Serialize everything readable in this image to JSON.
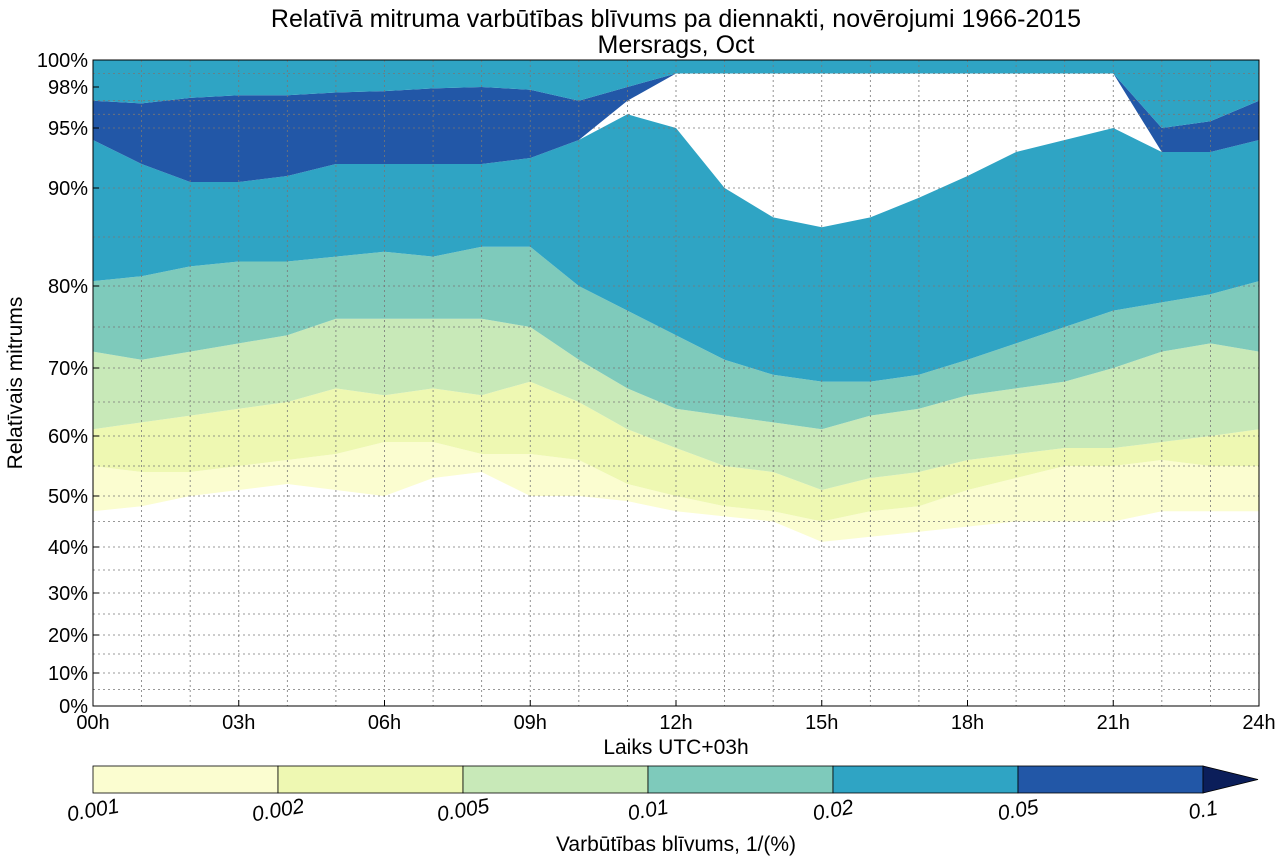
{
  "chart_data": {
    "type": "heatmap",
    "subtype": "filled-contour",
    "title": "Relatīvā mitruma varbūtības blīvums pa diennakti, novērojumi 1966-2015",
    "subtitle": "Mersrags, Oct",
    "xlabel": "Laiks UTC+03h",
    "ylabel": "Relatīvais mitrums",
    "x_ticks": [
      "00h",
      "03h",
      "06h",
      "09h",
      "12h",
      "15h",
      "18h",
      "21h",
      "24h"
    ],
    "x_tick_hours": [
      0,
      3,
      6,
      9,
      12,
      15,
      18,
      21,
      24
    ],
    "xlim": [
      0,
      24
    ],
    "y_ticks": [
      "0%",
      "10%",
      "20%",
      "30%",
      "40%",
      "50%",
      "60%",
      "70%",
      "80%",
      "90%",
      "95%",
      "98%",
      "100%"
    ],
    "y_tick_values": [
      0,
      10,
      20,
      30,
      40,
      50,
      60,
      70,
      80,
      90,
      95,
      98,
      100
    ],
    "ylim": [
      0,
      100
    ],
    "y_scale": "nonlinear (stretched toward 100%)",
    "grid": true,
    "colorbar": {
      "label": "Varbūtības blīvums, 1/(%)",
      "levels": [
        "0.001",
        "0.002",
        "0.005",
        "0.01",
        "0.02",
        "0.05",
        "0.1"
      ],
      "colors": [
        "#fbfdd0",
        "#eef8b2",
        "#c8e9b8",
        "#7ecabb",
        "#2fa4c4",
        "#2257a7"
      ],
      "extend_color": "#0b1e5a",
      "placement": "bottom"
    },
    "levels_bands": [
      {
        "range": "0.001-0.002",
        "lower": [
          47,
          48,
          50,
          51,
          52,
          51,
          50,
          53,
          54,
          50,
          50,
          49,
          47,
          46,
          45,
          41,
          42,
          43,
          44,
          45,
          45,
          45,
          47,
          47,
          47
        ],
        "upper": [
          55,
          54,
          54,
          55,
          56,
          57,
          59,
          59,
          57,
          57,
          56,
          52,
          50,
          48,
          47,
          45,
          47,
          48,
          51,
          53,
          55,
          55,
          56,
          55,
          55
        ]
      },
      {
        "range": "0.002-0.005",
        "lower": [
          55,
          54,
          54,
          55,
          56,
          57,
          59,
          59,
          57,
          57,
          56,
          52,
          50,
          48,
          47,
          45,
          47,
          48,
          51,
          53,
          55,
          55,
          56,
          55,
          55
        ],
        "upper": [
          61,
          62,
          63,
          64,
          65,
          67,
          66,
          67,
          66,
          68,
          65,
          61,
          58,
          55,
          54,
          51,
          53,
          54,
          56,
          57,
          58,
          58,
          59,
          60,
          61
        ]
      },
      {
        "range": "0.005-0.01",
        "lower": [
          61,
          62,
          63,
          64,
          65,
          67,
          66,
          67,
          66,
          68,
          65,
          61,
          58,
          55,
          54,
          51,
          53,
          54,
          56,
          57,
          58,
          58,
          59,
          60,
          61
        ],
        "upper": [
          72,
          71,
          72,
          73,
          74,
          76,
          76,
          76,
          76,
          75,
          71,
          67,
          64,
          63,
          62,
          61,
          63,
          64,
          66,
          67,
          68,
          70,
          72,
          73,
          72
        ]
      },
      {
        "range": "0.01-0.02",
        "lower": [
          72,
          71,
          72,
          73,
          74,
          76,
          76,
          76,
          76,
          75,
          71,
          67,
          64,
          63,
          62,
          61,
          63,
          64,
          66,
          67,
          68,
          70,
          72,
          73,
          72
        ],
        "upper": [
          80.5,
          81,
          82,
          82.5,
          82.5,
          83,
          83.5,
          83,
          84,
          84,
          80,
          77,
          74,
          71,
          69,
          68,
          68,
          69,
          71,
          73,
          75,
          77,
          78,
          79,
          80.5
        ]
      },
      {
        "range": "0.02-0.05",
        "lower": [
          80.5,
          81,
          82,
          82.5,
          82.5,
          83,
          83.5,
          83,
          84,
          84,
          80,
          77,
          74,
          71,
          69,
          68,
          68,
          69,
          71,
          73,
          75,
          77,
          78,
          79,
          80.5
        ],
        "upper": [
          94,
          92,
          90.5,
          90.5,
          91,
          92,
          92,
          92,
          92,
          92.5,
          94,
          96,
          95,
          90,
          87,
          86,
          87,
          89,
          91,
          93,
          94,
          95,
          93,
          93,
          94
        ]
      },
      {
        "range": "0.05-0.1",
        "lower": [
          94,
          92,
          90.5,
          90.5,
          91,
          92,
          92,
          92,
          92,
          92.5,
          94,
          97,
          99,
          99,
          99,
          99,
          99,
          99,
          99,
          99,
          99,
          99,
          93,
          93,
          94
        ],
        "upper": [
          97,
          96.8,
          97.2,
          97.4,
          97.4,
          97.6,
          97.7,
          97.9,
          98,
          97.8,
          97,
          98,
          99,
          99,
          99,
          99,
          99,
          99,
          99,
          99,
          99,
          99,
          95,
          95.5,
          97
        ]
      }
    ]
  }
}
